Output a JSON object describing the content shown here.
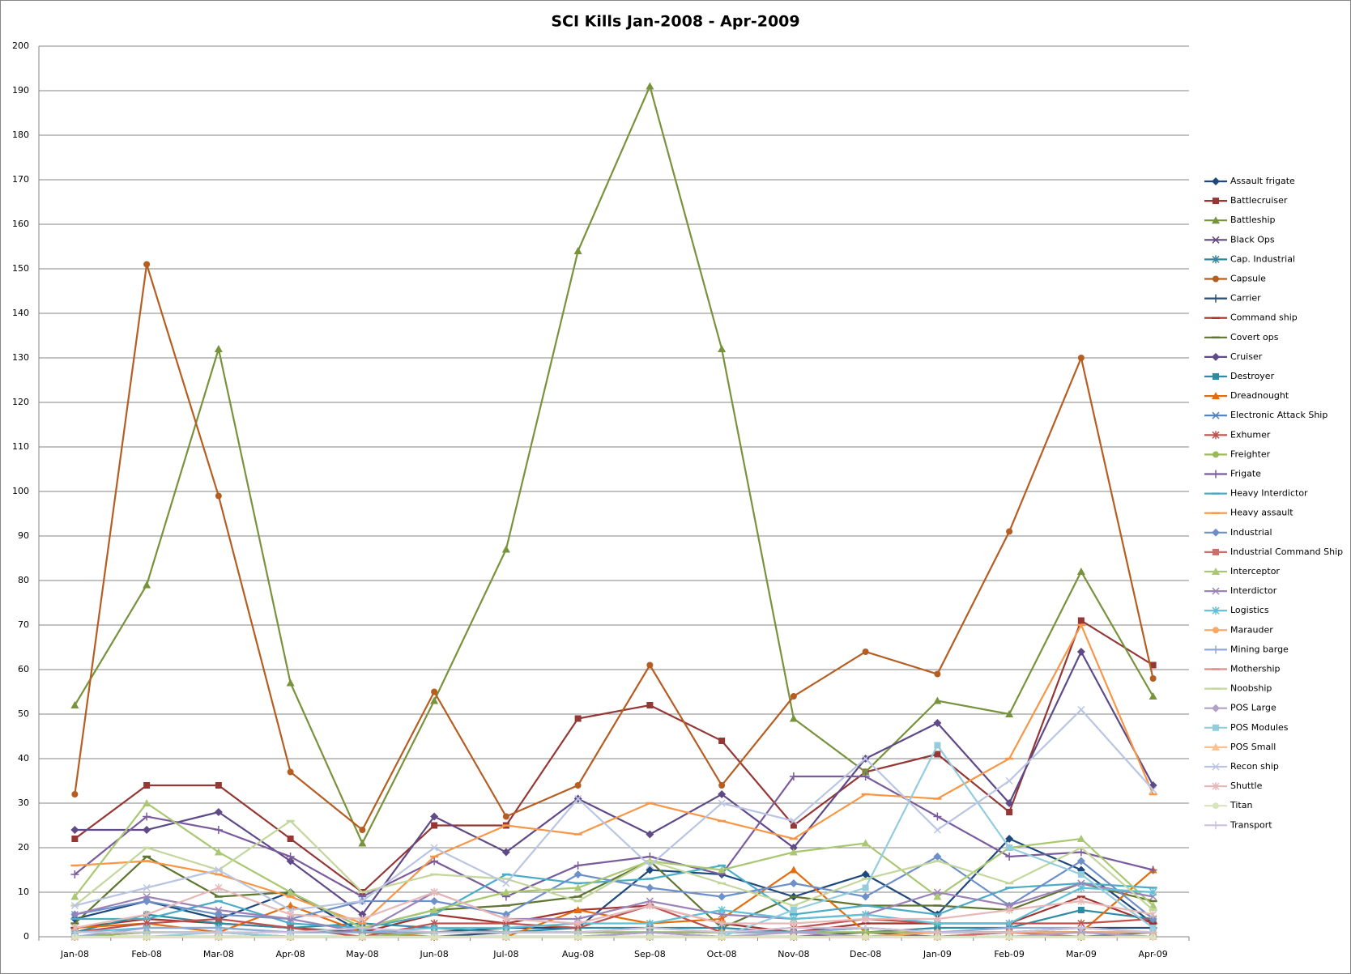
{
  "chart_data": {
    "type": "line",
    "title": "SCI Kills Jan-2008 - Apr-2009",
    "categories": [
      "Jan-08",
      "Feb-08",
      "Mar-08",
      "Apr-08",
      "May-08",
      "Jun-08",
      "Jul-08",
      "Aug-08",
      "Sep-08",
      "Oct-08",
      "Nov-08",
      "Dec-08",
      "Jan-09",
      "Feb-09",
      "Mar-09",
      "Apr-09"
    ],
    "ylim": [
      0,
      200
    ],
    "yticks": [
      0,
      10,
      20,
      30,
      40,
      50,
      60,
      70,
      80,
      90,
      100,
      110,
      120,
      130,
      140,
      150,
      160,
      170,
      180,
      190,
      200
    ],
    "grid": true,
    "legend": "right",
    "series": [
      {
        "name": "Assault frigate",
        "color": "#1f497d",
        "marker": "diamond",
        "values": [
          4,
          8,
          4,
          10,
          1,
          1,
          2,
          2,
          15,
          14,
          9,
          14,
          5,
          22,
          15,
          3
        ]
      },
      {
        "name": "Battlecruiser",
        "color": "#953735",
        "marker": "square",
        "values": [
          22,
          34,
          34,
          22,
          10,
          25,
          25,
          49,
          52,
          44,
          25,
          37,
          41,
          28,
          71,
          61
        ]
      },
      {
        "name": "Battleship",
        "color": "#77933c",
        "marker": "triangle",
        "values": [
          52,
          79,
          132,
          57,
          21,
          53,
          87,
          154,
          191,
          132,
          49,
          37,
          53,
          50,
          82,
          54
        ]
      },
      {
        "name": "Black Ops",
        "color": "#604a7b",
        "marker": "x",
        "values": [
          0,
          0,
          0,
          0,
          0,
          0,
          0,
          0,
          1,
          0,
          0,
          1,
          0,
          1,
          1,
          1
        ]
      },
      {
        "name": "Cap. Industrial",
        "color": "#31859c",
        "marker": "star",
        "values": [
          0,
          0,
          0,
          0,
          0,
          0,
          0,
          0,
          0,
          0,
          0,
          0,
          0,
          0,
          0,
          1
        ]
      },
      {
        "name": "Capsule",
        "color": "#b65d21",
        "marker": "circle",
        "values": [
          32,
          151,
          99,
          37,
          24,
          55,
          27,
          34,
          61,
          34,
          54,
          64,
          59,
          91,
          130,
          58
        ]
      },
      {
        "name": "Carrier",
        "color": "#2c4d75",
        "marker": "plus",
        "values": [
          0,
          1,
          1,
          0,
          0,
          0,
          1,
          1,
          1,
          1,
          1,
          2,
          1,
          1,
          2,
          2
        ]
      },
      {
        "name": "Command ship",
        "color": "#a0322f",
        "marker": "dash",
        "values": [
          2,
          4,
          3,
          2,
          1,
          5,
          3,
          6,
          7,
          3,
          1,
          3,
          3,
          3,
          9,
          3
        ]
      },
      {
        "name": "Covert ops",
        "color": "#5f7530",
        "marker": "dash",
        "values": [
          3,
          18,
          9,
          10,
          2,
          6,
          7,
          9,
          17,
          2,
          9,
          7,
          7,
          6,
          12,
          8
        ]
      },
      {
        "name": "Cruiser",
        "color": "#5f4987",
        "marker": "diamond",
        "values": [
          24,
          24,
          28,
          17,
          5,
          27,
          19,
          31,
          23,
          32,
          20,
          40,
          48,
          30,
          64,
          34
        ]
      },
      {
        "name": "Destroyer",
        "color": "#2e8ca2",
        "marker": "square",
        "values": [
          1,
          5,
          3,
          2,
          3,
          2,
          1,
          2,
          2,
          2,
          1,
          1,
          2,
          2,
          6,
          4
        ]
      },
      {
        "name": "Dreadnought",
        "color": "#e46c0a",
        "marker": "triangle",
        "values": [
          2,
          3,
          1,
          7,
          1,
          0,
          0,
          6,
          3,
          4,
          15,
          1,
          1,
          1,
          1,
          15
        ]
      },
      {
        "name": "Electronic Attack Ship",
        "color": "#4f81bd",
        "marker": "x",
        "values": [
          0,
          0,
          0,
          0,
          0,
          0,
          0,
          0,
          0,
          0,
          0,
          0,
          1,
          1,
          1,
          1
        ]
      },
      {
        "name": "Exhumer",
        "color": "#c0504d",
        "marker": "star",
        "values": [
          1,
          3,
          4,
          2,
          0,
          3,
          3,
          2,
          7,
          1,
          2,
          4,
          3,
          3,
          3,
          4
        ]
      },
      {
        "name": "Freighter",
        "color": "#9bbb59",
        "marker": "circle",
        "values": [
          0,
          1,
          1,
          0,
          0,
          1,
          1,
          1,
          1,
          1,
          1,
          1,
          1,
          1,
          1,
          0
        ]
      },
      {
        "name": "Frigate",
        "color": "#7a5c9c",
        "marker": "plus",
        "values": [
          14,
          27,
          24,
          18,
          9,
          17,
          9,
          16,
          18,
          14,
          36,
          36,
          27,
          18,
          19,
          15
        ]
      },
      {
        "name": "Heavy Interdictor",
        "color": "#4bacc6",
        "marker": "dash",
        "values": [
          4,
          4,
          8,
          3,
          2,
          5,
          14,
          12,
          13,
          16,
          5,
          7,
          5,
          11,
          12,
          11
        ]
      },
      {
        "name": "Heavy assault",
        "color": "#f79646",
        "marker": "dash",
        "values": [
          16,
          17,
          14,
          9,
          3,
          18,
          25,
          23,
          30,
          26,
          22,
          32,
          31,
          40,
          70,
          32
        ]
      },
      {
        "name": "Industrial",
        "color": "#6d90c8",
        "marker": "diamond",
        "values": [
          5,
          8,
          5,
          4,
          8,
          8,
          5,
          14,
          11,
          9,
          12,
          9,
          18,
          7,
          17,
          4
        ]
      },
      {
        "name": "Industrial Command Ship",
        "color": "#d06c69",
        "marker": "square",
        "values": [
          0,
          0,
          0,
          0,
          0,
          0,
          0,
          0,
          0,
          0,
          0,
          0,
          0,
          1,
          0,
          0
        ]
      },
      {
        "name": "Interceptor",
        "color": "#a9c871",
        "marker": "triangle",
        "values": [
          9,
          30,
          19,
          10,
          2,
          6,
          10,
          11,
          17,
          15,
          19,
          21,
          9,
          20,
          22,
          7
        ]
      },
      {
        "name": "Interdictor",
        "color": "#9b83b8",
        "marker": "x",
        "values": [
          5,
          9,
          6,
          4,
          1,
          10,
          4,
          4,
          8,
          5,
          4,
          5,
          10,
          7,
          12,
          9
        ]
      },
      {
        "name": "Logistics",
        "color": "#5fc0d6",
        "marker": "star",
        "values": [
          1,
          2,
          2,
          1,
          1,
          2,
          2,
          3,
          3,
          6,
          4,
          5,
          3,
          3,
          11,
          10
        ]
      },
      {
        "name": "Marauder",
        "color": "#f9a762",
        "marker": "circle",
        "values": [
          0,
          0,
          0,
          0,
          0,
          0,
          0,
          0,
          0,
          0,
          0,
          0,
          1,
          1,
          1,
          1
        ]
      },
      {
        "name": "Mining barge",
        "color": "#8fa9d4",
        "marker": "plus",
        "values": [
          0,
          2,
          2,
          1,
          1,
          1,
          1,
          1,
          2,
          1,
          1,
          2,
          1,
          2,
          2,
          1
        ]
      },
      {
        "name": "Mothership",
        "color": "#dc8f8d",
        "marker": "dash",
        "values": [
          0,
          0,
          0,
          0,
          0,
          0,
          0,
          0,
          0,
          0,
          0,
          0,
          0,
          0,
          0,
          0
        ]
      },
      {
        "name": "Noobship",
        "color": "#c3d69b",
        "marker": "dash",
        "values": [
          7,
          20,
          15,
          26,
          10,
          14,
          13,
          8,
          17,
          12,
          7,
          13,
          17,
          12,
          20,
          6
        ]
      },
      {
        "name": "POS Large",
        "color": "#b2a1c7",
        "marker": "diamond",
        "values": [
          0,
          0,
          0,
          0,
          0,
          0,
          0,
          0,
          1,
          0,
          1,
          0,
          0,
          0,
          1,
          0
        ]
      },
      {
        "name": "POS Modules",
        "color": "#93cddd",
        "marker": "square",
        "values": [
          0,
          0,
          1,
          0,
          0,
          0,
          0,
          0,
          0,
          0,
          6,
          11,
          43,
          20,
          14,
          2
        ]
      },
      {
        "name": "POS Small",
        "color": "#fac090",
        "marker": "triangle",
        "values": [
          0,
          0,
          0,
          0,
          0,
          0,
          0,
          0,
          0,
          0,
          0,
          0,
          0,
          0,
          0,
          0
        ]
      },
      {
        "name": "Recon ship",
        "color": "#b9c5e2",
        "marker": "x",
        "values": [
          7,
          11,
          15,
          6,
          8,
          20,
          12,
          31,
          16,
          30,
          26,
          40,
          24,
          35,
          51,
          33
        ]
      },
      {
        "name": "Shuttle",
        "color": "#e6b9b8",
        "marker": "star",
        "values": [
          2,
          5,
          11,
          5,
          4,
          10,
          4,
          3,
          7,
          3,
          3,
          4,
          4,
          6,
          8,
          5
        ]
      },
      {
        "name": "Titan",
        "color": "#d7e4bd",
        "marker": "circle",
        "values": [
          0,
          0,
          0,
          0,
          0,
          0,
          0,
          0,
          0,
          0,
          0,
          0,
          0,
          0,
          0,
          0
        ]
      },
      {
        "name": "Transport",
        "color": "#ccc1da",
        "marker": "plus",
        "values": [
          1,
          1,
          1,
          1,
          2,
          1,
          1,
          1,
          2,
          1,
          2,
          2,
          1,
          1,
          2,
          1
        ]
      }
    ]
  }
}
